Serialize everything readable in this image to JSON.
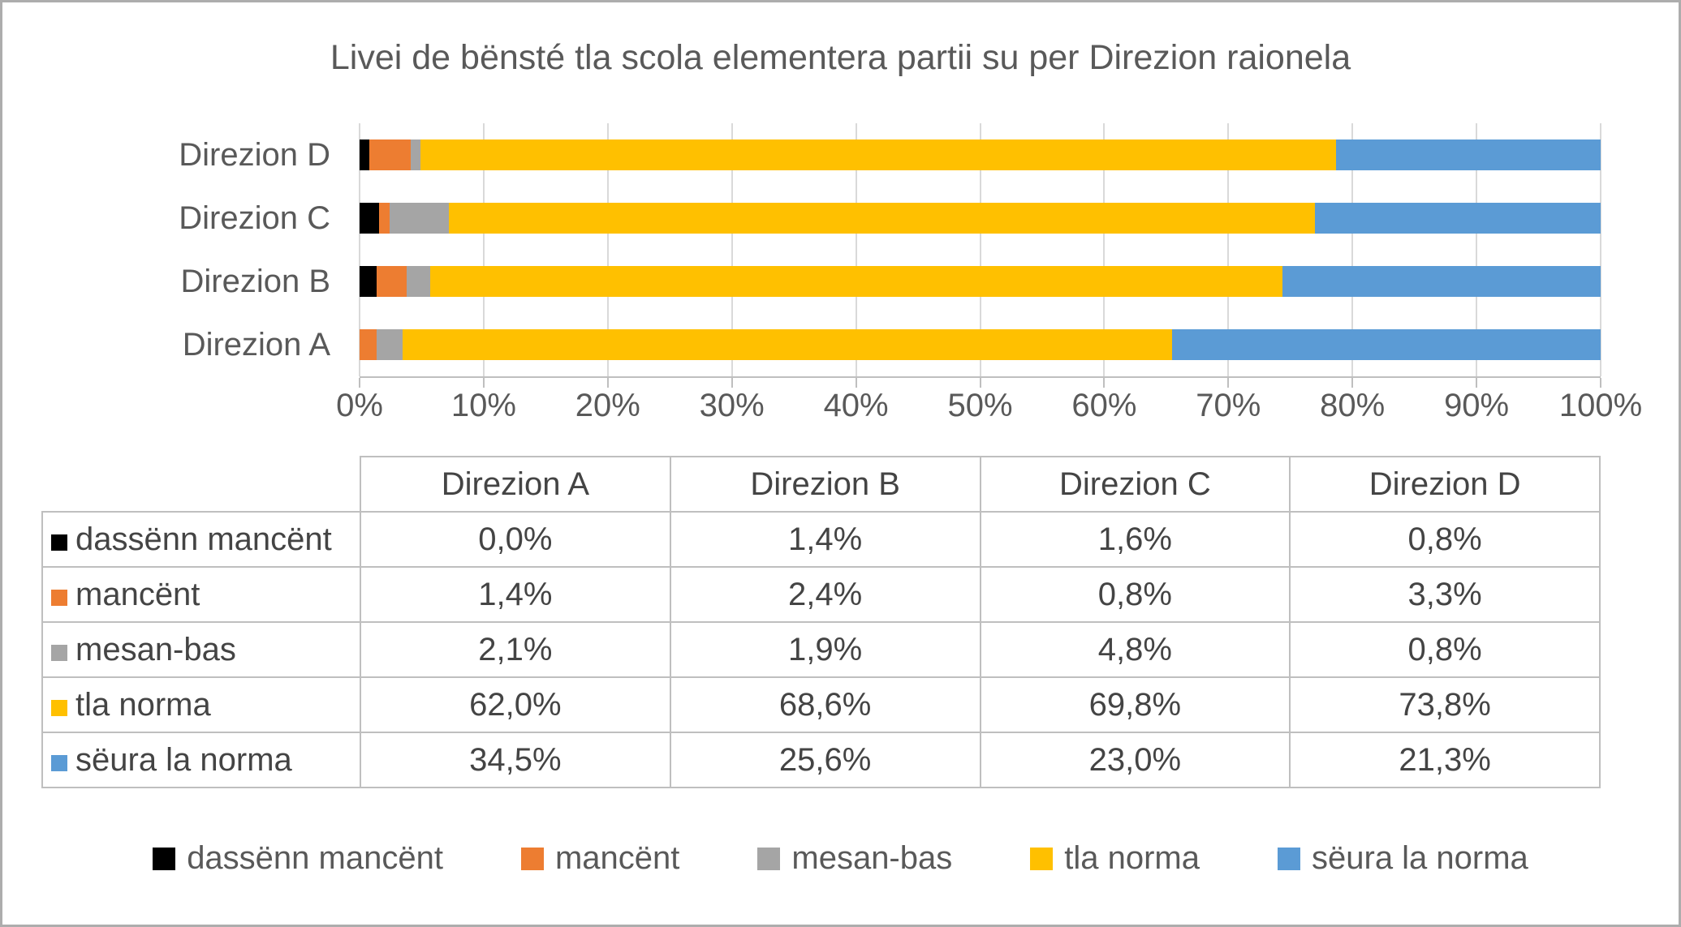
{
  "title": "Livei de bënsté tla scola elementera partii su per Direzion raionela",
  "chart_data": {
    "type": "bar",
    "orientation": "horizontal",
    "stacked": true,
    "stacked_to_100_percent": true,
    "title": "Livei de bënsté tla scola elementera partii su per Direzion raionela",
    "categories": [
      "Direzion A",
      "Direzion B",
      "Direzion C",
      "Direzion D"
    ],
    "category_display_order_top_to_bottom": [
      "Direzion D",
      "Direzion C",
      "Direzion B",
      "Direzion A"
    ],
    "series": [
      {
        "name": "dassënn mancënt",
        "color": "#000000",
        "values": [
          0.0,
          1.4,
          1.6,
          0.8
        ],
        "labels": [
          "0,0%",
          "1,4%",
          "1,6%",
          "0,8%"
        ]
      },
      {
        "name": "mancënt",
        "color": "#ED7D31",
        "values": [
          1.4,
          2.4,
          0.8,
          3.3
        ],
        "labels": [
          "1,4%",
          "2,4%",
          "0,8%",
          "3,3%"
        ]
      },
      {
        "name": "mesan-bas",
        "color": "#A5A5A5",
        "values": [
          2.1,
          1.9,
          4.8,
          0.8
        ],
        "labels": [
          "2,1%",
          "1,9%",
          "4,8%",
          "0,8%"
        ]
      },
      {
        "name": "tla norma",
        "color": "#FFC000",
        "values": [
          62.0,
          68.6,
          69.8,
          73.8
        ],
        "labels": [
          "62,0%",
          "68,6%",
          "69,8%",
          "73,8%"
        ]
      },
      {
        "name": "sëura la norma",
        "color": "#5B9BD5",
        "values": [
          34.5,
          25.6,
          23.0,
          21.3
        ],
        "labels": [
          "34,5%",
          "25,6%",
          "23,0%",
          "21,3%"
        ]
      }
    ],
    "x_axis": {
      "min": 0,
      "max": 100,
      "ticks": [
        "0%",
        "10%",
        "20%",
        "30%",
        "40%",
        "50%",
        "60%",
        "70%",
        "80%",
        "90%",
        "100%"
      ]
    },
    "grid": true,
    "legend_position": "bottom",
    "colors": {
      "text": "#595959",
      "gridline": "#D9D9D9",
      "axis_line": "#BFBFBF",
      "table_border": "#BFBFBF",
      "page_border": "#ADADAD"
    }
  }
}
